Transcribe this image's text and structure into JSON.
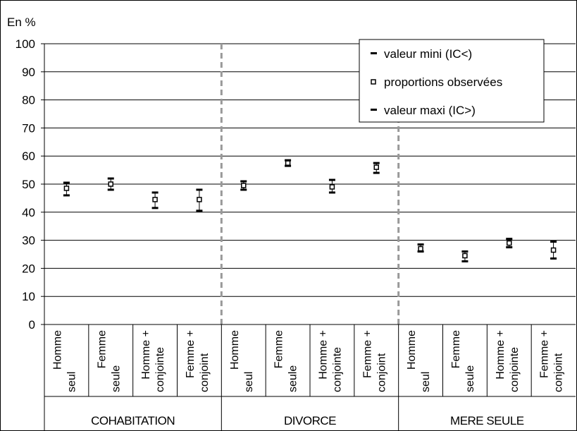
{
  "chart_data": {
    "type": "scatter",
    "title": "",
    "ylabel": "En %",
    "ylim": [
      0,
      100
    ],
    "yticks": [
      0,
      10,
      20,
      30,
      40,
      50,
      60,
      70,
      80,
      90,
      100
    ],
    "grid": true,
    "legend_position": "top-right",
    "legend": [
      {
        "key": "min",
        "label": "valeur mini (IC<)"
      },
      {
        "key": "obs",
        "label": "proportions observées"
      },
      {
        "key": "max",
        "label": "valeur maxi (IC>)"
      }
    ],
    "groups": [
      {
        "name": "COHABITATION",
        "categories": [
          {
            "line1": "Homme",
            "line2": "seul",
            "min": 46,
            "obs": 48.5,
            "max": 50.5
          },
          {
            "line1": "Femme",
            "line2": "seule",
            "min": 48,
            "obs": 50,
            "max": 52
          },
          {
            "line1": "Homme +",
            "line2": "conjointe",
            "min": 41.5,
            "obs": 44.5,
            "max": 47
          },
          {
            "line1": "Femme +",
            "line2": "conjoint",
            "min": 40.5,
            "obs": 44.5,
            "max": 48
          }
        ]
      },
      {
        "name": "DIVORCE",
        "categories": [
          {
            "line1": "Homme",
            "line2": "seul",
            "min": 48,
            "obs": 49.5,
            "max": 51
          },
          {
            "line1": "Femme",
            "line2": "seule",
            "min": 56.5,
            "obs": 57.5,
            "max": 58.5
          },
          {
            "line1": "Homme +",
            "line2": "conjointe",
            "min": 47,
            "obs": 49,
            "max": 51.5
          },
          {
            "line1": "Femme +",
            "line2": "conjoint",
            "min": 54,
            "obs": 56,
            "max": 57.5
          }
        ]
      },
      {
        "name": "MERE SEULE",
        "categories": [
          {
            "line1": "Homme",
            "line2": "seul",
            "min": 26,
            "obs": 27,
            "max": 28.5
          },
          {
            "line1": "Femme",
            "line2": "seule",
            "min": 22.5,
            "obs": 24.5,
            "max": 26
          },
          {
            "line1": "Homme +",
            "line2": "conjointe",
            "min": 27.5,
            "obs": 29,
            "max": 30.5
          },
          {
            "line1": "Femme +",
            "line2": "conjoint",
            "min": 23.5,
            "obs": 26.5,
            "max": 29.5
          }
        ]
      }
    ]
  }
}
